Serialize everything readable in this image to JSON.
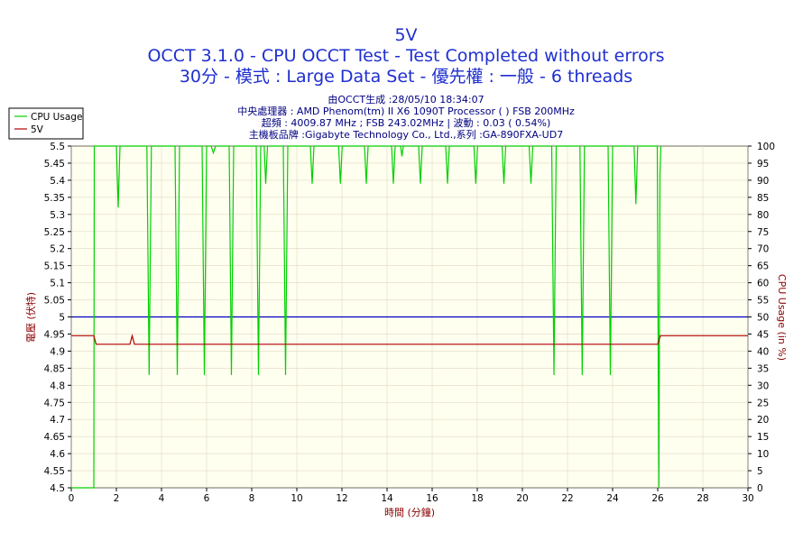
{
  "chart_data": {
    "type": "line",
    "title": "5V",
    "subtitle": "OCCT 3.1.0 - CPU OCCT Test - Test Completed without errors",
    "subtitle2": "30分 - 模式 : Large Data Set - 優先權 : 一般 - 6 threads",
    "info_lines": [
      "由OCCT生成 :28/05/10 18:34:07",
      "中央處理器 : AMD Phenom(tm) II X6 1090T Processor (    ) FSB 200MHz",
      "超頻 : 4009.87 MHz ; FSB 243.02MHz | 波動 : 0.03 ( 0.54%)",
      "主機板品牌 :Gigabyte Technology Co., Ltd.,系列 :GA-890FXA-UD7"
    ],
    "xlabel": "時間 (分鐘)",
    "ylabel": "電壓 (伏特)",
    "y2label": "CPU Usage (in %)",
    "xlim": [
      0,
      30
    ],
    "ylim": [
      4.5,
      5.5
    ],
    "y2lim": [
      0,
      100
    ],
    "x_ticks": [
      "0",
      "2",
      "4",
      "6",
      "8",
      "10",
      "12",
      "14",
      "16",
      "18",
      "20",
      "22",
      "24",
      "26",
      "28",
      "30"
    ],
    "y_ticks": [
      "4.5",
      "4.55",
      "4.6",
      "4.65",
      "4.7",
      "4.75",
      "4.8",
      "4.85",
      "4.9",
      "4.95",
      "5",
      "5.05",
      "5.1",
      "5.15",
      "5.2",
      "5.25",
      "5.3",
      "5.35",
      "5.4",
      "5.45",
      "5.5"
    ],
    "y2_ticks": [
      "0",
      "5",
      "10",
      "15",
      "20",
      "25",
      "30",
      "35",
      "40",
      "45",
      "50",
      "55",
      "60",
      "65",
      "70",
      "75",
      "80",
      "85",
      "90",
      "95",
      "100"
    ],
    "reference_line": {
      "y": 5.0,
      "color": "#0000c0"
    },
    "legend": {
      "placement": "top-left",
      "items": [
        "CPU Usage",
        "5V"
      ]
    },
    "series": [
      {
        "name": "CPU Usage",
        "axis": "right",
        "color": "#00d000",
        "points": [
          [
            0,
            0
          ],
          [
            0.98,
            0
          ],
          [
            1.0,
            0
          ],
          [
            1.02,
            100
          ],
          [
            1.05,
            100
          ],
          [
            2.0,
            100
          ],
          [
            2.08,
            82
          ],
          [
            2.16,
            100
          ],
          [
            3.35,
            100
          ],
          [
            3.45,
            33
          ],
          [
            3.55,
            100
          ],
          [
            4.6,
            100
          ],
          [
            4.7,
            33
          ],
          [
            4.8,
            100
          ],
          [
            5.8,
            100
          ],
          [
            5.9,
            33
          ],
          [
            6.0,
            100
          ],
          [
            6.2,
            100
          ],
          [
            6.3,
            98
          ],
          [
            6.4,
            100
          ],
          [
            7.0,
            100
          ],
          [
            7.1,
            33
          ],
          [
            7.2,
            100
          ],
          [
            8.2,
            100
          ],
          [
            8.3,
            33
          ],
          [
            8.4,
            100
          ],
          [
            8.55,
            100
          ],
          [
            8.62,
            89
          ],
          [
            8.7,
            100
          ],
          [
            9.4,
            100
          ],
          [
            9.5,
            33
          ],
          [
            9.6,
            100
          ],
          [
            10.6,
            100
          ],
          [
            10.68,
            89
          ],
          [
            10.76,
            100
          ],
          [
            11.85,
            100
          ],
          [
            11.93,
            89
          ],
          [
            12.01,
            100
          ],
          [
            13.0,
            100
          ],
          [
            13.08,
            89
          ],
          [
            13.16,
            100
          ],
          [
            14.2,
            100
          ],
          [
            14.28,
            89
          ],
          [
            14.36,
            100
          ],
          [
            14.6,
            100
          ],
          [
            14.66,
            97
          ],
          [
            14.72,
            100
          ],
          [
            15.4,
            100
          ],
          [
            15.48,
            89
          ],
          [
            15.56,
            100
          ],
          [
            16.6,
            100
          ],
          [
            16.68,
            89
          ],
          [
            16.76,
            100
          ],
          [
            17.85,
            100
          ],
          [
            17.93,
            89
          ],
          [
            18.01,
            100
          ],
          [
            19.1,
            100
          ],
          [
            19.18,
            89
          ],
          [
            19.26,
            100
          ],
          [
            20.3,
            100
          ],
          [
            20.38,
            89
          ],
          [
            20.46,
            100
          ],
          [
            21.3,
            100
          ],
          [
            21.4,
            33
          ],
          [
            21.5,
            100
          ],
          [
            22.55,
            100
          ],
          [
            22.65,
            33
          ],
          [
            22.75,
            100
          ],
          [
            23.8,
            100
          ],
          [
            23.9,
            33
          ],
          [
            24.0,
            100
          ],
          [
            24.95,
            100
          ],
          [
            25.03,
            83
          ],
          [
            25.11,
            100
          ],
          [
            25.98,
            100
          ],
          [
            26.05,
            0
          ],
          [
            26.1,
            92
          ],
          [
            26.14,
            100
          ]
        ]
      },
      {
        "name": "5V",
        "axis": "left",
        "color": "#b00000",
        "points": [
          [
            0,
            4.945
          ],
          [
            1.0,
            4.945
          ],
          [
            1.1,
            4.92
          ],
          [
            2.6,
            4.92
          ],
          [
            2.7,
            4.945
          ],
          [
            2.8,
            4.92
          ],
          [
            26.0,
            4.92
          ],
          [
            26.12,
            4.945
          ],
          [
            30,
            4.945
          ]
        ]
      }
    ]
  }
}
